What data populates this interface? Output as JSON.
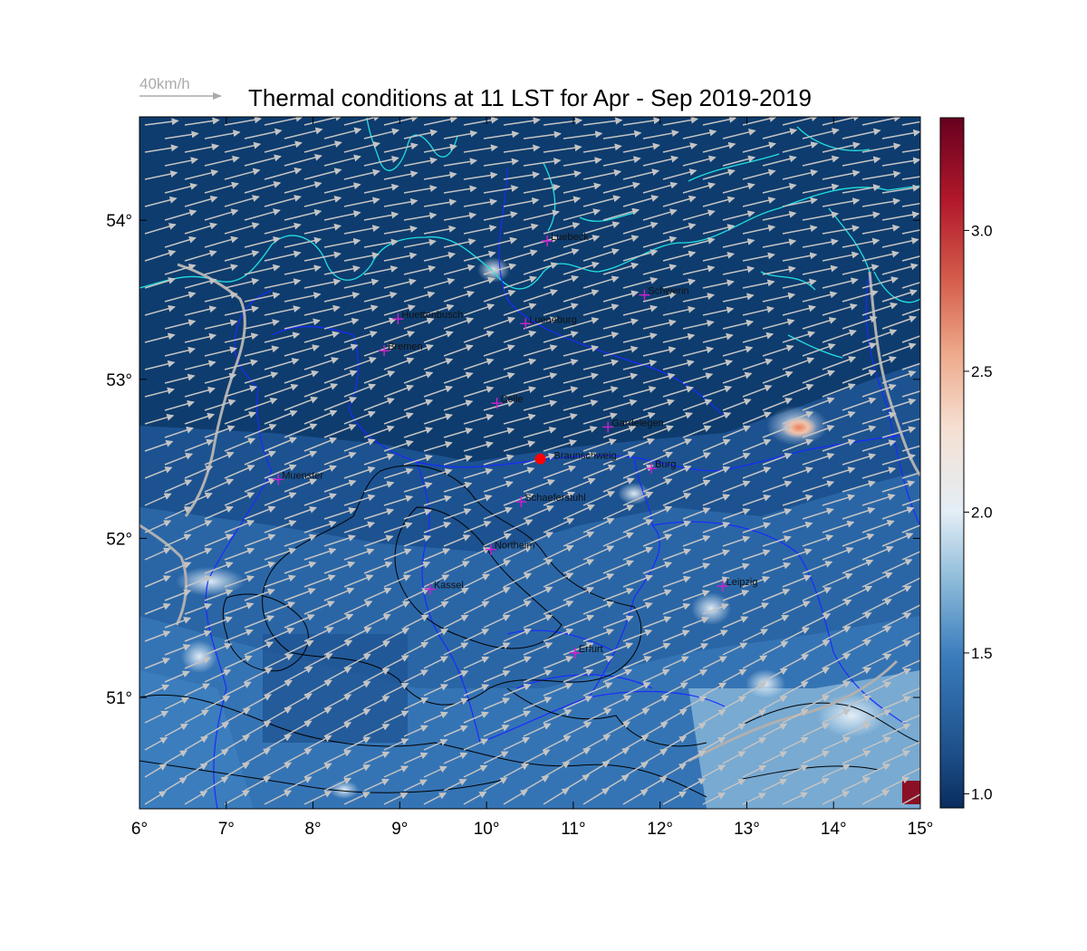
{
  "title": "Thermal conditions at 11 LST for Apr - Sep  2019-2019",
  "wind_reference": {
    "label": "40km/h",
    "speed_kmh": 40
  },
  "map": {
    "lon_range": [
      6,
      15
    ],
    "lat_range": [
      50.3,
      54.65
    ],
    "x_ticks": [
      "6°",
      "7°",
      "8°",
      "9°",
      "10°",
      "11°",
      "12°",
      "13°",
      "14°",
      "15°"
    ],
    "y_ticks": [
      "51°",
      "52°",
      "53°",
      "54°"
    ],
    "colors": {
      "sea": "#0e3c6e",
      "coast": "#22e0e0",
      "borders": "#1a2bff",
      "contours": "#000000",
      "rivers": "#b0b0b0",
      "arrows": "#c4c4c4",
      "city_marker": "#d020d0",
      "site_marker": "#ff0000"
    }
  },
  "colorbar": {
    "range": [
      0.95,
      3.4
    ],
    "ticks": [
      "1.0",
      "1.5",
      "2.0",
      "2.5",
      "3.0"
    ],
    "colormap": "RdBu_r"
  },
  "cities": [
    {
      "name": "Luebeck",
      "lon": 10.7,
      "lat": 53.87
    },
    {
      "name": "Schwerin",
      "lon": 11.82,
      "lat": 53.53
    },
    {
      "name": "Huettenbusch",
      "lon": 8.98,
      "lat": 53.38
    },
    {
      "name": "Lueneburg",
      "lon": 10.45,
      "lat": 53.35
    },
    {
      "name": "Bremen",
      "lon": 8.82,
      "lat": 53.18
    },
    {
      "name": "Celle",
      "lon": 10.12,
      "lat": 52.85
    },
    {
      "name": "Gardelegen",
      "lon": 11.4,
      "lat": 52.7
    },
    {
      "name": "Burg",
      "lon": 11.9,
      "lat": 52.44
    },
    {
      "name": "Muenster",
      "lon": 7.6,
      "lat": 52.37
    },
    {
      "name": "Schaeferstuhl",
      "lon": 10.4,
      "lat": 52.23
    },
    {
      "name": "Northeim",
      "lon": 10.05,
      "lat": 51.93
    },
    {
      "name": "Leipzig",
      "lon": 12.72,
      "lat": 51.7
    },
    {
      "name": "Kassel",
      "lon": 9.35,
      "lat": 51.68
    },
    {
      "name": "Erfurt",
      "lon": 11.02,
      "lat": 51.28
    }
  ],
  "site": {
    "name": "Braunschweig",
    "lon": 10.62,
    "lat": 52.5
  }
}
